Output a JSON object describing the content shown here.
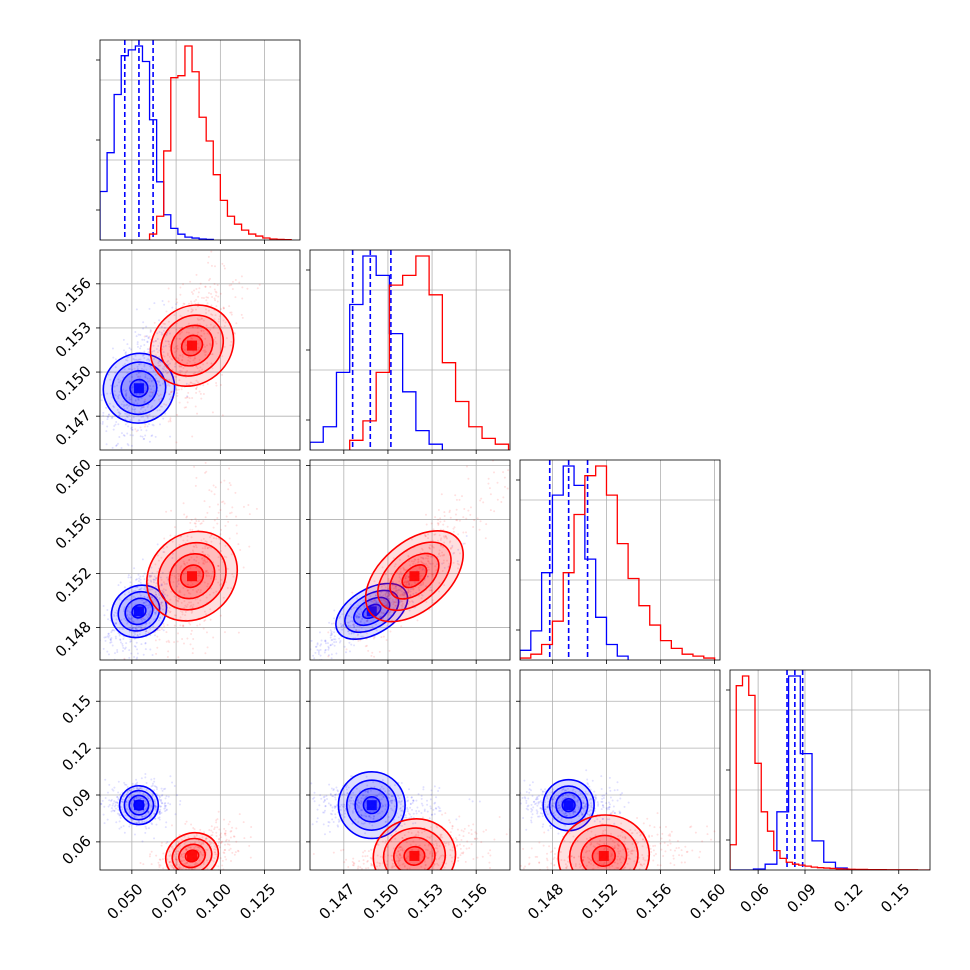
{
  "chart_data": {
    "type": "corner",
    "grid": true,
    "parameters": [
      {
        "ticks": [
          "0.050",
          "0.075",
          "0.100",
          "0.125"
        ],
        "tick_values": [
          0.05,
          0.075,
          0.1,
          0.125
        ],
        "range": [
          0.032,
          0.145
        ]
      },
      {
        "ticks": [
          "0.147",
          "0.150",
          "0.153",
          "0.156"
        ],
        "tick_values": [
          0.147,
          0.15,
          0.153,
          0.156
        ],
        "range": [
          0.1447,
          0.1583
        ]
      },
      {
        "ticks": [
          "0.148",
          "0.152",
          "0.156",
          "0.160"
        ],
        "tick_values": [
          0.148,
          0.152,
          0.156,
          0.16
        ],
        "range": [
          0.1456,
          0.1604
        ]
      },
      {
        "ticks": [
          "0.06",
          "0.09",
          "0.12",
          "0.15"
        ],
        "tick_values": [
          0.06,
          0.09,
          0.12,
          0.15
        ],
        "range": [
          0.042,
          0.17
        ]
      }
    ],
    "series": [
      {
        "color": "#0000ff",
        "quantiles_shown": true,
        "means": [
          0.054,
          0.1489,
          0.1492,
          0.0835
        ],
        "sigmas": [
          0.0065,
          0.0015,
          0.0012,
          0.0045
        ],
        "quantiles": [
          [
            0.046,
            0.054,
            0.062
          ],
          [
            0.1476,
            0.1488,
            0.1502
          ],
          [
            0.1478,
            0.1492,
            0.1506
          ],
          [
            0.0785,
            0.0835,
            0.0885
          ]
        ],
        "histograms": [
          {
            "bins": [
              0.032,
              0.036,
              0.04,
              0.044,
              0.048,
              0.052,
              0.056,
              0.06,
              0.064,
              0.068,
              0.072,
              0.076,
              0.08,
              0.084,
              0.088,
              0.092,
              0.096
            ],
            "counts": [
              0.25,
              0.45,
              0.75,
              0.95,
              0.98,
              1.0,
              0.92,
              0.62,
              0.3,
              0.13,
              0.06,
              0.03,
              0.015,
              0.01,
              0.005,
              0.003
            ]
          },
          {
            "bins": [
              0.1447,
              0.1456,
              0.1465,
              0.1474,
              0.1483,
              0.1492,
              0.1501,
              0.151,
              0.1519,
              0.1528,
              0.1537
            ],
            "counts": [
              0.04,
              0.12,
              0.4,
              0.75,
              1.0,
              0.9,
              0.6,
              0.3,
              0.1,
              0.03
            ]
          },
          {
            "bins": [
              0.1456,
              0.1464,
              0.1472,
              0.148,
              0.1488,
              0.1496,
              0.1504,
              0.1512,
              0.152,
              0.1528,
              0.1536
            ],
            "counts": [
              0.05,
              0.15,
              0.45,
              0.85,
              1.0,
              0.9,
              0.52,
              0.22,
              0.08,
              0.02
            ]
          },
          {
            "bins": [
              0.042,
              0.0495,
              0.057,
              0.0645,
              0.072,
              0.0795,
              0.087,
              0.0945,
              0.102,
              0.1095,
              0.117
            ],
            "counts": [
              0.0,
              0.0,
              0.005,
              0.03,
              0.3,
              1.0,
              0.6,
              0.15,
              0.04,
              0.01
            ]
          }
        ]
      },
      {
        "color": "#ff0000",
        "quantiles_shown": false,
        "means": [
          0.084,
          0.1518,
          0.1518,
          0.051
        ],
        "sigmas": [
          0.0085,
          0.0018,
          0.0022,
          0.007
        ],
        "quantiles": [],
        "histograms": [
          {
            "bins": [
              0.06,
              0.064,
              0.068,
              0.072,
              0.076,
              0.08,
              0.084,
              0.088,
              0.092,
              0.096,
              0.1,
              0.104,
              0.108,
              0.112,
              0.116,
              0.12,
              0.124,
              0.128,
              0.132,
              0.136,
              0.14
            ],
            "counts": [
              0.03,
              0.12,
              0.45,
              0.82,
              0.83,
              0.98,
              0.85,
              0.62,
              0.5,
              0.33,
              0.2,
              0.12,
              0.08,
              0.05,
              0.03,
              0.02,
              0.01,
              0.005,
              0.003,
              0.002
            ]
          },
          {
            "bins": [
              0.1474,
              0.1483,
              0.1492,
              0.1501,
              0.151,
              0.1519,
              0.1528,
              0.1537,
              0.1546,
              0.1555,
              0.1564,
              0.1573,
              0.1582
            ],
            "counts": [
              0.05,
              0.15,
              0.4,
              0.85,
              0.9,
              1.0,
              0.8,
              0.45,
              0.25,
              0.12,
              0.06,
              0.03
            ]
          },
          {
            "bins": [
              0.1456,
              0.1464,
              0.1472,
              0.148,
              0.1488,
              0.1496,
              0.1504,
              0.1512,
              0.152,
              0.1528,
              0.1536,
              0.1544,
              0.1552,
              0.156,
              0.1568,
              0.1576,
              0.1584,
              0.1592,
              0.16
            ],
            "counts": [
              0.01,
              0.03,
              0.08,
              0.2,
              0.45,
              0.75,
              0.95,
              1.0,
              0.85,
              0.6,
              0.42,
              0.28,
              0.18,
              0.1,
              0.06,
              0.03,
              0.02,
              0.01
            ]
          },
          {
            "bins": [
              0.042,
              0.046,
              0.05,
              0.054,
              0.058,
              0.062,
              0.066,
              0.07,
              0.074,
              0.078,
              0.082,
              0.086,
              0.09,
              0.094,
              0.098,
              0.102,
              0.106,
              0.11,
              0.114,
              0.118,
              0.122,
              0.126,
              0.13,
              0.134,
              0.138,
              0.142,
              0.146,
              0.15,
              0.154,
              0.158,
              0.162,
              0.166,
              0.17
            ],
            "counts": [
              0.13,
              0.95,
              1.0,
              0.9,
              0.55,
              0.3,
              0.2,
              0.1,
              0.06,
              0.04,
              0.03,
              0.025,
              0.02,
              0.015,
              0.012,
              0.01,
              0.008,
              0.006,
              0.005,
              0.004,
              0.003,
              0.003,
              0.002,
              0.002,
              0.002,
              0.001,
              0.001,
              0.001,
              0.001,
              0.001,
              0.0,
              0.0
            ]
          }
        ]
      }
    ],
    "correlations": {
      "0,1": 0.3,
      "0,2": 0.55,
      "0,3": -0.05,
      "1,2": 0.92,
      "1,3": 0.0,
      "2,3": 0.0
    },
    "correlations_red": {
      "0,1": 0.55,
      "0,2": 0.55,
      "0,3": 0.6,
      "1,2": 0.9,
      "1,3": 0.5,
      "2,3": 0.5
    }
  }
}
